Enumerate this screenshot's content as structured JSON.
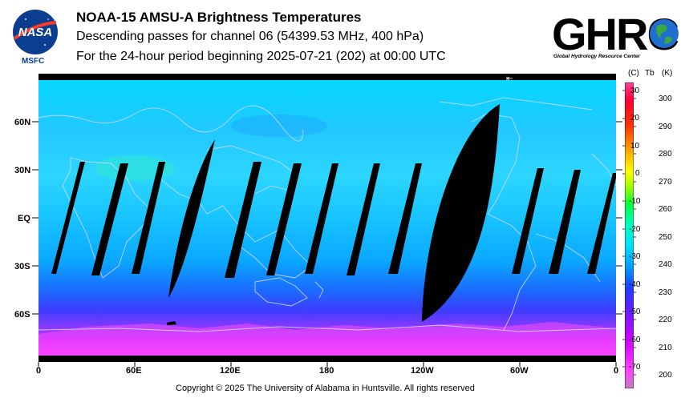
{
  "header": {
    "title": "NOAA-15 AMSU-A Brightness Temperatures",
    "subtitle_1": "Descending passes for channel 06 (54399.53 MHz, 400 hPa)",
    "subtitle_2": "For the 24-hour period beginning 2025-07-21 (202) at 00:00 UTC"
  },
  "logos": {
    "nasa_text": "NASA",
    "msfc_text": "MSFC",
    "ghrc_text": "GHRC",
    "ghrc_subtitle": "Global Hydrology Resource Center"
  },
  "map": {
    "lat_labels": [
      "60N",
      "30N",
      "EQ",
      "30S",
      "60S"
    ],
    "lon_labels": [
      "0",
      "60E",
      "120E",
      "180",
      "120W",
      "60W",
      "0"
    ]
  },
  "colorbar": {
    "header_c": "(C)",
    "header_tb": "Tb",
    "header_k": "(K)",
    "celsius_ticks": [
      "30",
      "20",
      "10",
      "0",
      "-10",
      "-20",
      "-30",
      "-40",
      "-50",
      "-60",
      "-70"
    ],
    "kelvin_ticks": [
      "300",
      "290",
      "280",
      "270",
      "260",
      "250",
      "240",
      "230",
      "220",
      "210",
      "200"
    ],
    "range_k": [
      195,
      305
    ],
    "colors": [
      "#ff66ff",
      "#cc00cc",
      "#8000ff",
      "#3a3aff",
      "#00a0ff",
      "#00e0ff",
      "#00ffc0",
      "#00ff40",
      "#a0ff00",
      "#ffff00",
      "#ffa000",
      "#ff3000",
      "#ff0000",
      "#ff0080"
    ]
  },
  "footer": {
    "copyright": "Copyright © 2025 The University of Alabama in Huntsville.  All rights reserved"
  }
}
